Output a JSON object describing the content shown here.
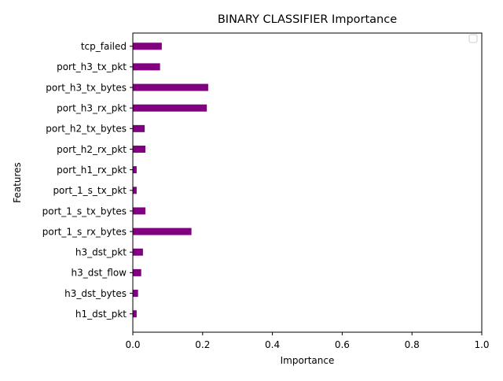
{
  "chart_data": {
    "type": "bar",
    "orientation": "horizontal",
    "title": "BINARY CLASSIFIER Importance",
    "xlabel": "Importance",
    "ylabel": "Features",
    "xlim": [
      0,
      1
    ],
    "xticks": [
      "0.0",
      "0.2",
      "0.4",
      "0.6",
      "0.8",
      "1.0"
    ],
    "categories": [
      "h1_dst_pkt",
      "h3_dst_bytes",
      "h3_dst_flow",
      "h3_dst_pkt",
      "port_1_s_rx_bytes",
      "port_1_s_tx_bytes",
      "port_1_s_tx_pkt",
      "port_h1_rx_pkt",
      "port_h2_rx_pkt",
      "port_h2_tx_bytes",
      "port_h3_rx_pkt",
      "port_h3_tx_bytes",
      "port_h3_tx_pkt",
      "tcp_failed"
    ],
    "values": [
      0.011,
      0.015,
      0.024,
      0.029,
      0.168,
      0.036,
      0.011,
      0.011,
      0.036,
      0.034,
      0.212,
      0.216,
      0.078,
      0.083
    ],
    "bar_color": "#800080",
    "legend": {
      "placement": "top-right",
      "entries": []
    },
    "grid": false
  }
}
